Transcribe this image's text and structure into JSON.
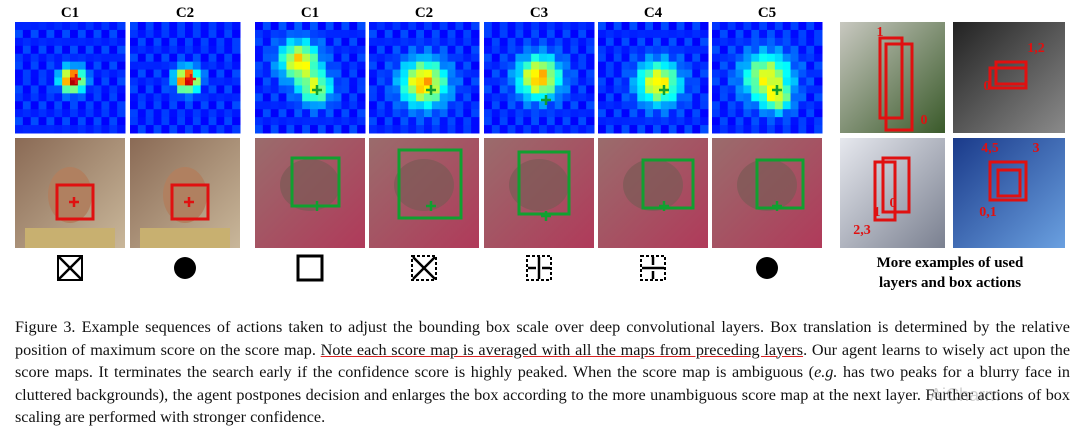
{
  "figure": {
    "left_columns": [
      "C1",
      "C2"
    ],
    "right_columns": [
      "C1",
      "C2",
      "C3",
      "C4",
      "C5"
    ],
    "example_labels": [
      "1",
      "0",
      "1,2",
      "0",
      "4,5",
      "3",
      "0,1",
      "1",
      "0",
      "2,3"
    ],
    "examples_caption": [
      "More examples of used",
      "layers and box actions"
    ]
  },
  "caption": {
    "label": "Figure 3.",
    "text_1": "Example sequences of actions taken to adjust the bounding box scale over deep convolutional layers. Box translation is determined by the relative position of maximum score on the score map.",
    "underlined": "Note each score map is averaged with all the maps from preceding layers",
    "text_2": ". Our agent learns to wisely act upon the score maps. It terminates the search early if the confidence score is highly peaked. When the score map is ambiguous (",
    "italic": "e.g.",
    "text_3": " has two peaks for a blurry face in cluttered backgrounds), the agent postpones decision and enlarges the box according to the more unambiguous score map at the next layer. Further actions of box scaling are performed with stronger confidence."
  },
  "watermark": "AiCharm"
}
